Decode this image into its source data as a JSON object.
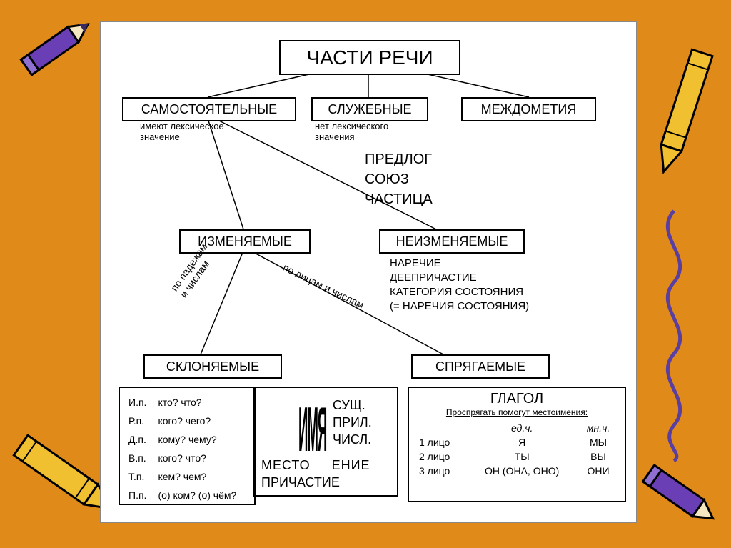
{
  "bg_color": "#e08a1a",
  "paper_color": "#ffffff",
  "stroke": "#000000",
  "root": {
    "label": "ЧАСТИ РЕЧИ",
    "fontsize": 28
  },
  "level2": {
    "a": {
      "label": "САМОСТОЯТЕЛЬНЫЕ",
      "caption": "имеют лексическое\nзначение"
    },
    "b": {
      "label": "СЛУЖЕБНЫЕ",
      "caption": "нет лексического\nзначения"
    },
    "c": {
      "label": "МЕЖДОМЕТИЯ"
    }
  },
  "service_list": [
    "ПРЕДЛОГ",
    "СОЮЗ",
    "ЧАСТИЦА"
  ],
  "level3": {
    "a": {
      "label": "ИЗМЕНЯЕМЫЕ"
    },
    "b": {
      "label": "НЕИЗМЕНЯЕМЫЕ",
      "list": [
        "НАРЕЧИЕ",
        "ДЕЕПРИЧАСТИЕ",
        "КАТЕГОРИЯ СОСТОЯНИЯ",
        "(= НАРЕЧИЯ СОСТОЯНИЯ)"
      ]
    }
  },
  "branch_labels": {
    "left": "по падежам\nи числам",
    "right": "по лицам и числам"
  },
  "level4": {
    "a": "СКЛОНЯЕМЫЕ",
    "b": "СПРЯГАЕМЫЕ"
  },
  "cases": [
    {
      "c": "И.п.",
      "q": "кто? что?"
    },
    {
      "c": "Р.п.",
      "q": "кого? чего?"
    },
    {
      "c": "Д.п.",
      "q": "кому? чему?"
    },
    {
      "c": "В.п.",
      "q": "кого? что?"
    },
    {
      "c": "Т.п.",
      "q": "кем? чем?"
    },
    {
      "c": "П.п.",
      "q": "(о) ком? (о) чём?"
    }
  ],
  "declined": {
    "vword": "ИМЯ",
    "items": [
      "СУЩ.",
      "ПРИЛ.",
      "ЧИСЛ."
    ],
    "extra": [
      "МЕСТО     ЕНИЕ",
      "ПРИЧАСТИЕ"
    ]
  },
  "verb": {
    "title": "ГЛАГОЛ",
    "sub": "Проспрягать помогут местоимения:",
    "cols": [
      "",
      "ед.ч.",
      "мн.ч."
    ],
    "rows": [
      [
        "1 лицо",
        "Я",
        "МЫ"
      ],
      [
        "2 лицо",
        "ТЫ",
        "ВЫ"
      ],
      [
        "3 лицо",
        "ОН (ОНА, ОНО)",
        "ОНИ"
      ]
    ]
  },
  "decor": {
    "pencil_purple": "#6a3fb5",
    "pencil_yellow": "#f0c030",
    "squiggle": "#5a3fa0"
  }
}
